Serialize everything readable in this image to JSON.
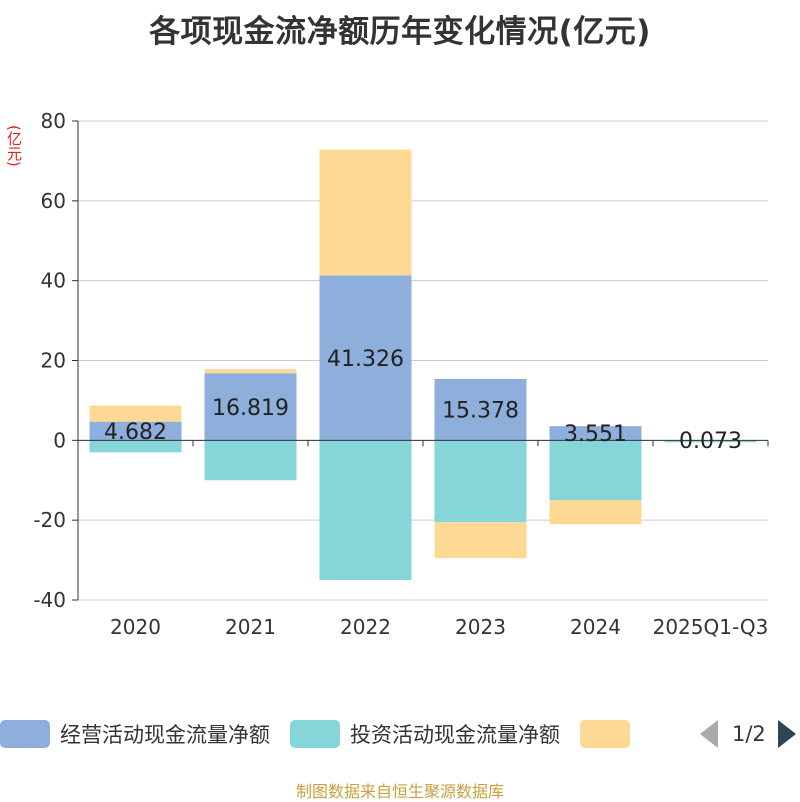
{
  "title": "各项现金流净额历年变化情况(亿元)",
  "unit_label": "(亿元)",
  "source": "制图数据来自恒生聚源数据库",
  "legend": {
    "items": [
      {
        "label": "经营活动现金流量净额",
        "color": "#8eaedc"
      },
      {
        "label": "投资活动现金流量净额",
        "color": "#86d5d8"
      },
      {
        "label": "",
        "color": "#fed994"
      }
    ],
    "page": "1/2"
  },
  "chart_data": {
    "type": "bar",
    "stacked": true,
    "title": "各项现金流净额历年变化情况(亿元)",
    "ylabel": "(亿元)",
    "ylim": [
      -40,
      80
    ],
    "yticks": [
      80,
      60,
      40,
      20,
      0,
      -20,
      -40
    ],
    "categories": [
      "2020",
      "2021",
      "2022",
      "2023",
      "2024",
      "2025Q1-Q3"
    ],
    "series": [
      {
        "name": "经营活动现金流量净额",
        "color": "#8eaedc",
        "values": [
          4.682,
          16.819,
          41.326,
          15.378,
          3.551,
          0.073
        ],
        "labels": [
          "4.682",
          "16.819",
          "41.326",
          "15.378",
          "3.551",
          "0.073"
        ]
      },
      {
        "name": "投资活动现金流量净额",
        "color": "#86d5d8",
        "values": [
          -3,
          -10,
          -35,
          -20.5,
          -15,
          -0.5
        ]
      },
      {
        "name": "",
        "color": "#fed994",
        "values": [
          4,
          1,
          31.5,
          -9,
          -6,
          0
        ]
      }
    ]
  }
}
